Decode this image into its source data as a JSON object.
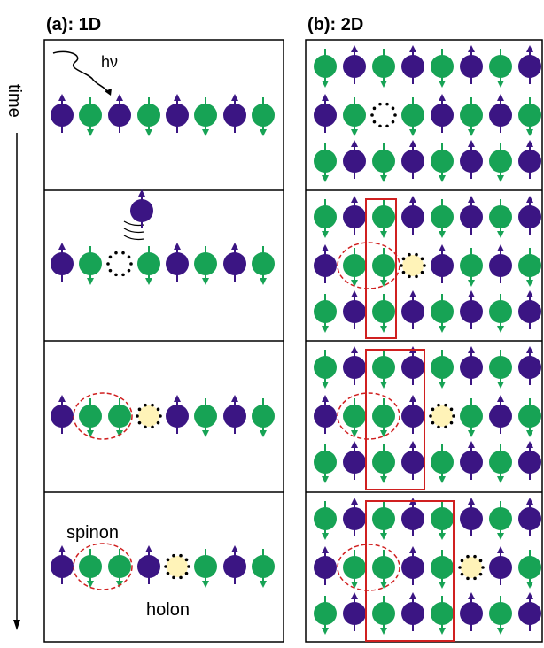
{
  "panels": {
    "a": {
      "title": "(a): 1D"
    },
    "b": {
      "title": "(b): 2D"
    }
  },
  "time_label": "time",
  "annotations": {
    "photon": "hν",
    "spinon": "spinon",
    "holon": "holon"
  }
}
